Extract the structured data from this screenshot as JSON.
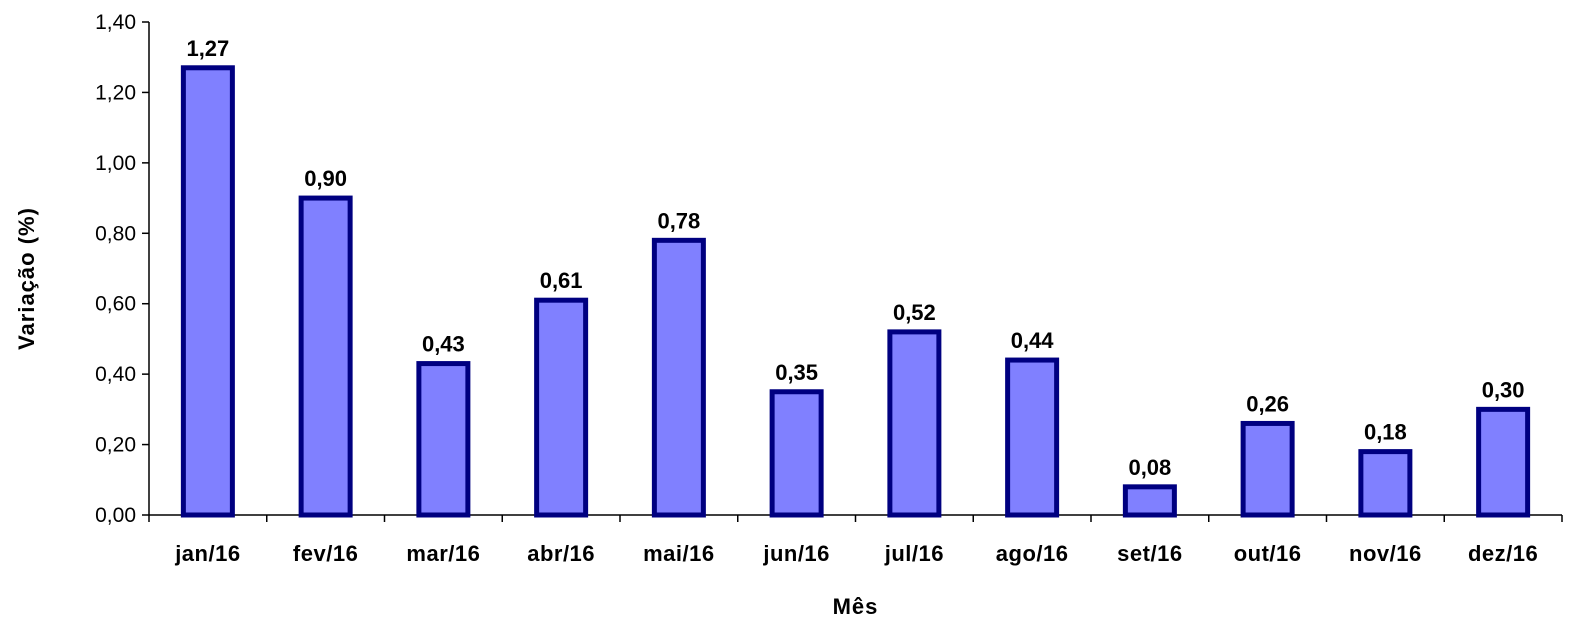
{
  "chart_data": {
    "type": "bar",
    "title": "",
    "xlabel": "Mês",
    "ylabel": "Variação (%)",
    "ylim": [
      0,
      1.4
    ],
    "yticks": [
      "0,00",
      "0,20",
      "0,40",
      "0,60",
      "0,80",
      "1,00",
      "1,20",
      "1,40"
    ],
    "categories": [
      "jan/16",
      "fev/16",
      "mar/16",
      "abr/16",
      "mai/16",
      "jun/16",
      "jul/16",
      "ago/16",
      "set/16",
      "out/16",
      "nov/16",
      "dez/16"
    ],
    "values": [
      1.27,
      0.9,
      0.43,
      0.61,
      0.78,
      0.35,
      0.52,
      0.44,
      0.08,
      0.26,
      0.18,
      0.3
    ],
    "value_labels": [
      "1,27",
      "0,90",
      "0,43",
      "0,61",
      "0,78",
      "0,35",
      "0,52",
      "0,44",
      "0,08",
      "0,26",
      "0,18",
      "0,30"
    ],
    "grid": false,
    "legend": "none",
    "colors": {
      "bar_fill": "#8080ff",
      "bar_stroke": "#000080",
      "axis": "#000000"
    }
  }
}
